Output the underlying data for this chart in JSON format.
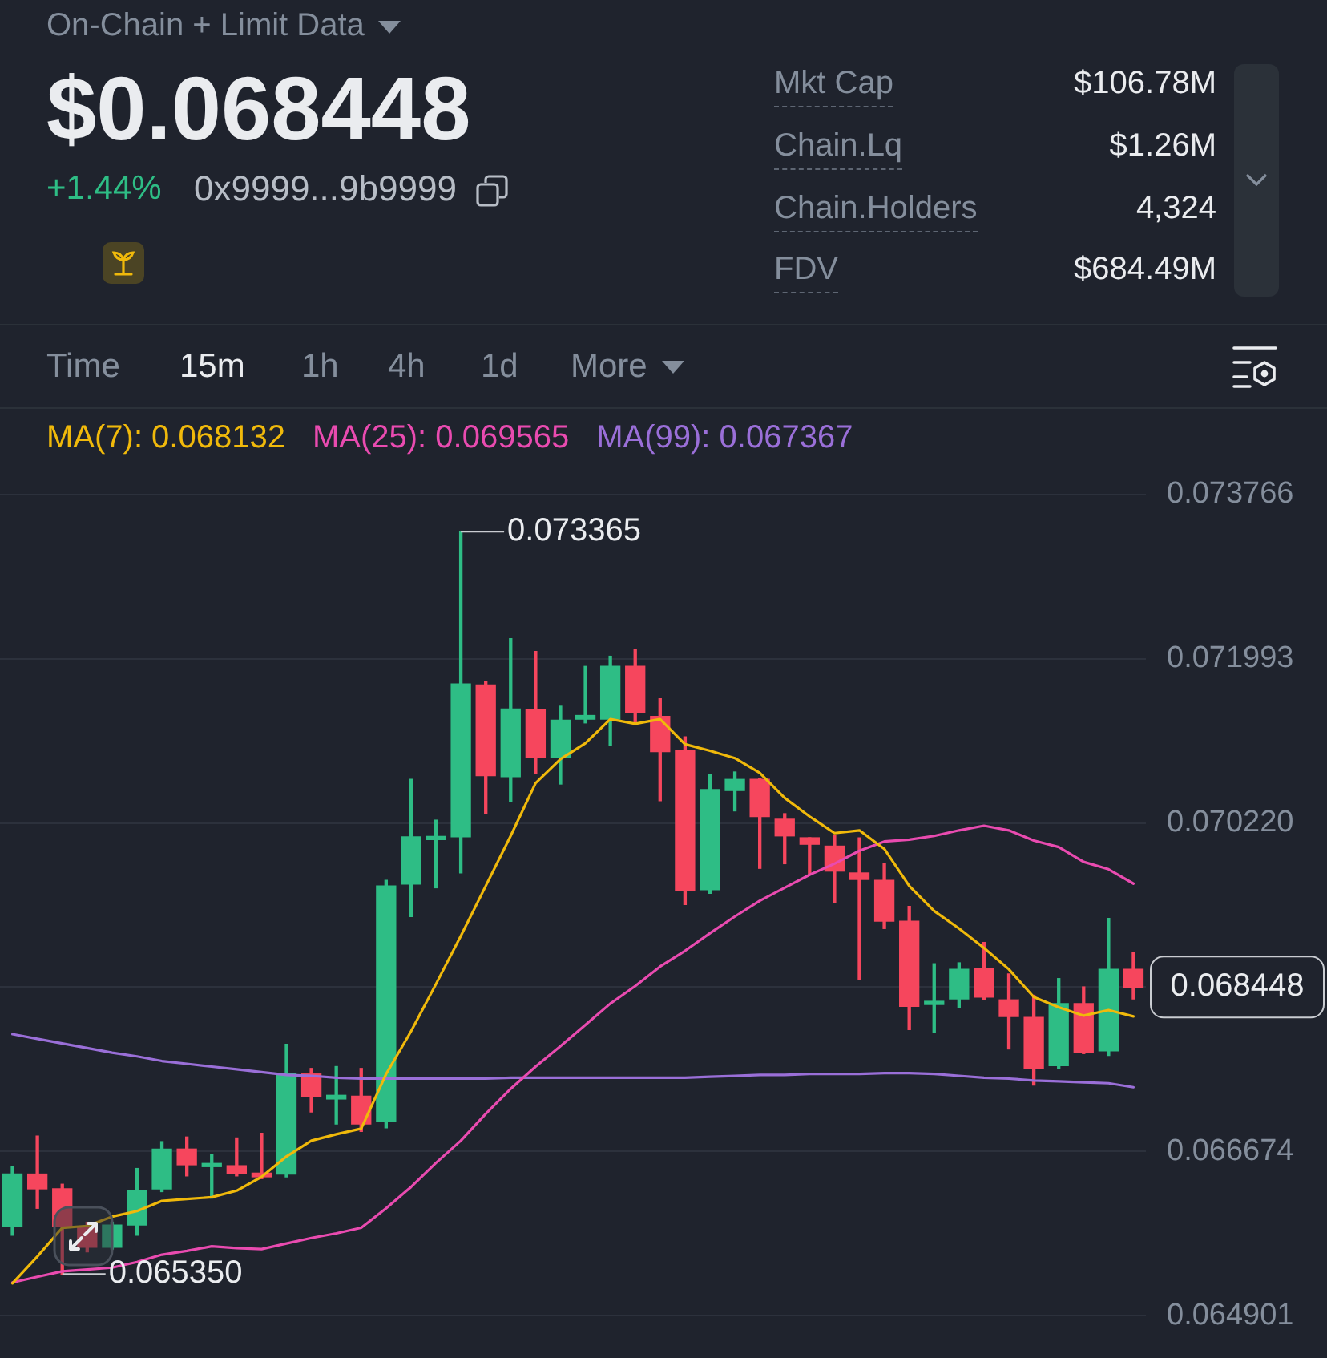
{
  "chart_data": {
    "type": "candlestick",
    "title": "On-Chain + Limit Data",
    "categories": [
      null,
      null,
      null,
      null,
      null,
      null,
      null,
      null,
      null,
      null,
      null,
      null,
      null,
      null,
      null,
      null,
      null,
      null,
      null,
      null,
      null,
      null,
      null,
      null,
      null,
      null,
      null,
      null,
      null,
      null,
      null,
      null,
      null,
      null,
      null,
      null,
      null,
      null,
      null,
      null,
      null,
      null,
      null,
      null,
      null,
      null
    ],
    "ohlc": [
      [
        0.06586,
        0.06651,
        0.06577,
        0.06643
      ],
      [
        0.06643,
        0.06684,
        0.06606,
        0.06627
      ],
      [
        0.06627,
        0.06632,
        0.06535,
        0.06586
      ],
      [
        0.06586,
        0.06591,
        0.06559,
        0.06564
      ],
      [
        0.06564,
        0.06591,
        0.06562,
        0.06588
      ],
      [
        0.06588,
        0.06649,
        0.06577,
        0.06625
      ],
      [
        0.06627,
        0.06678,
        0.06624,
        0.0667
      ],
      [
        0.0667,
        0.06683,
        0.06641,
        0.06653
      ],
      [
        0.06651,
        0.06664,
        0.06617,
        0.06653
      ],
      [
        0.06652,
        0.06682,
        0.06641,
        0.06644
      ],
      [
        0.06644,
        0.06687,
        0.06638,
        0.0664
      ],
      [
        0.06643,
        0.06783,
        0.0664,
        0.06752
      ],
      [
        0.06751,
        0.06757,
        0.0671,
        0.06727
      ],
      [
        0.06724,
        0.06759,
        0.06697,
        0.06728
      ],
      [
        0.06727,
        0.06757,
        0.06689,
        0.06697
      ],
      [
        0.067,
        0.0696,
        0.06693,
        0.06954
      ],
      [
        0.06956,
        0.07069,
        0.06921,
        0.07007
      ],
      [
        0.07004,
        0.07025,
        0.06952,
        0.07007
      ],
      [
        0.07007,
        0.073365,
        0.06968,
        0.07172
      ],
      [
        0.07171,
        0.07175,
        0.07032,
        0.07073
      ],
      [
        0.07072,
        0.07221,
        0.07045,
        0.07145
      ],
      [
        0.07144,
        0.07207,
        0.07075,
        0.07093
      ],
      [
        0.07093,
        0.07148,
        0.07064,
        0.07133
      ],
      [
        0.07134,
        0.07191,
        0.0713,
        0.07138
      ],
      [
        0.07134,
        0.07202,
        0.07106,
        0.07191
      ],
      [
        0.07191,
        0.07209,
        0.07131,
        0.07141
      ],
      [
        0.07137,
        0.07156,
        0.07046,
        0.07099
      ],
      [
        0.071,
        0.07115,
        0.06934,
        0.06949
      ],
      [
        0.0695,
        0.07074,
        0.06946,
        0.07058
      ],
      [
        0.07057,
        0.07077,
        0.07035,
        0.07069
      ],
      [
        0.07069,
        0.0707,
        0.06973,
        0.07029
      ],
      [
        0.07026,
        0.07032,
        0.06978,
        0.07008
      ],
      [
        0.07006,
        0.07006,
        0.06966,
        0.06999
      ],
      [
        0.06997,
        0.07009,
        0.06936,
        0.0697
      ],
      [
        0.06968,
        0.07006,
        0.06853,
        0.06961
      ],
      [
        0.0696,
        0.06978,
        0.06908,
        0.06916
      ],
      [
        0.06916,
        0.06932,
        0.06799,
        0.06824
      ],
      [
        0.06826,
        0.0687,
        0.06796,
        0.06829
      ],
      [
        0.06832,
        0.06871,
        0.06823,
        0.06864
      ],
      [
        0.06865,
        0.06893,
        0.06831,
        0.06834
      ],
      [
        0.06831,
        0.06859,
        0.06778,
        0.06813
      ],
      [
        0.06812,
        0.06836,
        0.06739,
        0.06757
      ],
      [
        0.0676,
        0.06854,
        0.06757,
        0.06827
      ],
      [
        0.06827,
        0.06845,
        0.06773,
        0.06774
      ],
      [
        0.06776,
        0.06919,
        0.06771,
        0.06864
      ],
      [
        0.06864,
        0.06882,
        0.06832,
        0.068448
      ]
    ],
    "colors": [
      "#2ebd85",
      "#f6465d",
      "#f6465d",
      "#f6465d",
      "#2ebd85",
      "#2ebd85",
      "#2ebd85",
      "#f6465d",
      "#2ebd85",
      "#f6465d",
      "#f6465d",
      "#2ebd85",
      "#f6465d",
      "#2ebd85",
      "#f6465d",
      "#2ebd85",
      "#2ebd85",
      "#2ebd85",
      "#2ebd85",
      "#f6465d",
      "#2ebd85",
      "#f6465d",
      "#2ebd85",
      "#2ebd85",
      "#2ebd85",
      "#f6465d",
      "#f6465d",
      "#f6465d",
      "#2ebd85",
      "#2ebd85",
      "#f6465d",
      "#f6465d",
      "#f6465d",
      "#f6465d",
      "#f6465d",
      "#f6465d",
      "#f6465d",
      "#2ebd85",
      "#2ebd85",
      "#f6465d",
      "#f6465d",
      "#f6465d",
      "#2ebd85",
      "#f6465d",
      "#2ebd85",
      "#f6465d"
    ],
    "series": [
      {
        "name": "MA(7): 0.068132",
        "type": "line",
        "color": "#f0b90b",
        "values": [
          0.06525,
          0.06554,
          0.06585,
          0.06587,
          0.06597,
          0.06603,
          0.06614,
          0.06616,
          0.06618,
          0.06625,
          0.0664,
          0.06662,
          0.06679,
          0.06686,
          0.06692,
          0.06751,
          0.06797,
          0.06848,
          0.069,
          0.06954,
          0.07008,
          0.07065,
          0.07091,
          0.07108,
          0.07134,
          0.07129,
          0.07134,
          0.07107,
          0.071,
          0.07092,
          0.07076,
          0.07049,
          0.07029,
          0.07011,
          0.07014,
          0.06994,
          0.06954,
          0.06927,
          0.06908,
          0.06887,
          0.06864,
          0.06834,
          0.06823,
          0.06814,
          0.0682,
          0.068132
        ]
      },
      {
        "name": "MA(25): 0.069565",
        "type": "line",
        "color": "#e94bb0",
        "values": [
          0.06526,
          0.06532,
          0.06538,
          0.0654,
          0.06542,
          0.06548,
          0.06556,
          0.0656,
          0.06565,
          0.06563,
          0.06562,
          0.06568,
          0.06574,
          0.06579,
          0.06585,
          0.06606,
          0.06629,
          0.06655,
          0.06679,
          0.06708,
          0.06735,
          0.06759,
          0.06781,
          0.06804,
          0.06827,
          0.06846,
          0.06867,
          0.06884,
          0.06903,
          0.06921,
          0.06938,
          0.06952,
          0.06966,
          0.06978,
          0.06992,
          0.07002,
          0.07004,
          0.07008,
          0.07014,
          0.07019,
          0.07014,
          0.07003,
          0.06996,
          0.0698,
          0.06972,
          0.069565
        ]
      },
      {
        "name": "MA(99): 0.067367",
        "type": "line",
        "color": "#9a6fd8",
        "values": [
          0.06794,
          0.06789,
          0.06784,
          0.06779,
          0.06774,
          0.0677,
          0.06765,
          0.06762,
          0.06759,
          0.06756,
          0.06753,
          0.0675,
          0.06749,
          0.06747,
          0.06746,
          0.06746,
          0.06746,
          0.06746,
          0.06746,
          0.06746,
          0.06747,
          0.06747,
          0.06747,
          0.06747,
          0.06747,
          0.06747,
          0.06747,
          0.06747,
          0.06748,
          0.06749,
          0.0675,
          0.0675,
          0.06751,
          0.06751,
          0.06751,
          0.06752,
          0.06752,
          0.06751,
          0.06749,
          0.06747,
          0.06746,
          0.06744,
          0.06743,
          0.06742,
          0.06741,
          0.067367
        ]
      }
    ],
    "ylim": [
      0.064901,
      0.073766
    ],
    "yticks": [
      0.064901,
      0.066674,
      {
        "value": 0.068447,
        "label": null
      },
      {
        "value": 0.07022,
        "label": "0.070220"
      },
      0.071993,
      0.073766
    ],
    "grid": "y",
    "legend": "top left",
    "tick_labels": "y",
    "annotations": [
      "$0.068448",
      "+1.44%",
      "0x9999...9b9999",
      "Mkt Cap",
      "$106.78M",
      "Chain.Lq",
      "$1.26M",
      "Chain.Holders",
      "4,324",
      "FDV",
      "$684.49M",
      "Time",
      "15m",
      "1h",
      "4h",
      "1d",
      "More",
      "0.073365",
      "0.065350",
      "0.068448"
    ]
  }
}
